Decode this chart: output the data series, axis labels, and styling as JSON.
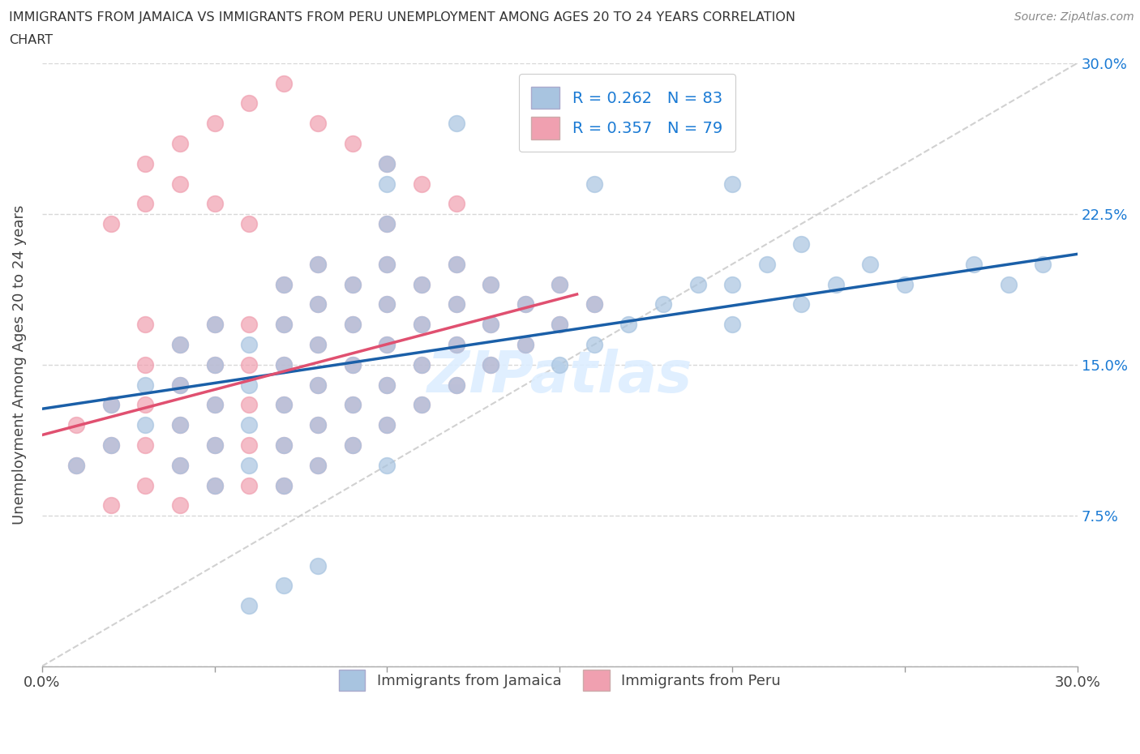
{
  "title_line1": "IMMIGRANTS FROM JAMAICA VS IMMIGRANTS FROM PERU UNEMPLOYMENT AMONG AGES 20 TO 24 YEARS CORRELATION",
  "title_line2": "CHART",
  "source": "Source: ZipAtlas.com",
  "ylabel": "Unemployment Among Ages 20 to 24 years",
  "xlim": [
    0,
    0.3
  ],
  "ylim": [
    0,
    0.3
  ],
  "xtick_positions": [
    0.0,
    0.05,
    0.1,
    0.15,
    0.2,
    0.25,
    0.3
  ],
  "xticklabels": [
    "0.0%",
    "",
    "",
    "",
    "",
    "",
    "30.0%"
  ],
  "yticks_right": [
    0.075,
    0.15,
    0.225,
    0.3
  ],
  "ytick_right_labels": [
    "7.5%",
    "15.0%",
    "22.5%",
    "30.0%"
  ],
  "jamaica_color": "#a8c4e0",
  "peru_color": "#f0a0b0",
  "jamaica_R": 0.262,
  "jamaica_N": 83,
  "peru_R": 0.357,
  "peru_N": 79,
  "jamaica_line_color": "#1a5fa8",
  "peru_line_color": "#e05070",
  "ref_line_color": "#cccccc",
  "watermark": "ZIPatlas",
  "background_color": "#ffffff",
  "grid_color": "#d8d8d8",
  "right_axis_color": "#1a7ad4",
  "legend_color": "#1a7ad4",
  "jamaica_line_x": [
    0.0,
    0.3
  ],
  "jamaica_line_y": [
    0.128,
    0.205
  ],
  "peru_line_x": [
    0.0,
    0.155
  ],
  "peru_line_y": [
    0.115,
    0.185
  ],
  "jamaica_dots": {
    "x": [
      0.01,
      0.02,
      0.02,
      0.03,
      0.03,
      0.04,
      0.04,
      0.04,
      0.04,
      0.05,
      0.05,
      0.05,
      0.05,
      0.05,
      0.06,
      0.06,
      0.06,
      0.06,
      0.07,
      0.07,
      0.07,
      0.07,
      0.07,
      0.07,
      0.08,
      0.08,
      0.08,
      0.08,
      0.08,
      0.08,
      0.09,
      0.09,
      0.09,
      0.09,
      0.09,
      0.1,
      0.1,
      0.1,
      0.1,
      0.1,
      0.1,
      0.1,
      0.1,
      0.11,
      0.11,
      0.11,
      0.11,
      0.12,
      0.12,
      0.12,
      0.12,
      0.13,
      0.13,
      0.13,
      0.14,
      0.14,
      0.15,
      0.15,
      0.15,
      0.16,
      0.16,
      0.17,
      0.18,
      0.19,
      0.2,
      0.2,
      0.21,
      0.22,
      0.23,
      0.24,
      0.25,
      0.27,
      0.28,
      0.29,
      0.15,
      0.12,
      0.1,
      0.08,
      0.07,
      0.06,
      0.16,
      0.2,
      0.22
    ],
    "y": [
      0.1,
      0.11,
      0.13,
      0.12,
      0.14,
      0.1,
      0.12,
      0.14,
      0.16,
      0.09,
      0.11,
      0.13,
      0.15,
      0.17,
      0.1,
      0.12,
      0.14,
      0.16,
      0.09,
      0.11,
      0.13,
      0.15,
      0.17,
      0.19,
      0.1,
      0.12,
      0.14,
      0.16,
      0.18,
      0.2,
      0.11,
      0.13,
      0.15,
      0.17,
      0.19,
      0.1,
      0.12,
      0.14,
      0.16,
      0.18,
      0.2,
      0.22,
      0.24,
      0.13,
      0.15,
      0.17,
      0.19,
      0.14,
      0.16,
      0.18,
      0.2,
      0.15,
      0.17,
      0.19,
      0.16,
      0.18,
      0.15,
      0.17,
      0.19,
      0.16,
      0.18,
      0.17,
      0.18,
      0.19,
      0.17,
      0.19,
      0.2,
      0.21,
      0.19,
      0.2,
      0.19,
      0.2,
      0.19,
      0.2,
      0.28,
      0.27,
      0.25,
      0.05,
      0.04,
      0.03,
      0.24,
      0.24,
      0.18
    ]
  },
  "peru_dots": {
    "x": [
      0.01,
      0.01,
      0.02,
      0.02,
      0.02,
      0.03,
      0.03,
      0.03,
      0.03,
      0.03,
      0.04,
      0.04,
      0.04,
      0.04,
      0.04,
      0.05,
      0.05,
      0.05,
      0.05,
      0.05,
      0.06,
      0.06,
      0.06,
      0.06,
      0.06,
      0.07,
      0.07,
      0.07,
      0.07,
      0.07,
      0.07,
      0.08,
      0.08,
      0.08,
      0.08,
      0.08,
      0.08,
      0.09,
      0.09,
      0.09,
      0.09,
      0.09,
      0.1,
      0.1,
      0.1,
      0.1,
      0.1,
      0.1,
      0.11,
      0.11,
      0.11,
      0.11,
      0.12,
      0.12,
      0.12,
      0.12,
      0.13,
      0.13,
      0.13,
      0.14,
      0.14,
      0.15,
      0.15,
      0.16,
      0.03,
      0.04,
      0.05,
      0.06,
      0.07,
      0.08,
      0.09,
      0.1,
      0.11,
      0.12,
      0.02,
      0.03,
      0.04,
      0.05,
      0.06
    ],
    "y": [
      0.1,
      0.12,
      0.08,
      0.11,
      0.13,
      0.09,
      0.11,
      0.13,
      0.15,
      0.17,
      0.08,
      0.1,
      0.12,
      0.14,
      0.16,
      0.09,
      0.11,
      0.13,
      0.15,
      0.17,
      0.09,
      0.11,
      0.13,
      0.15,
      0.17,
      0.09,
      0.11,
      0.13,
      0.15,
      0.17,
      0.19,
      0.1,
      0.12,
      0.14,
      0.16,
      0.18,
      0.2,
      0.11,
      0.13,
      0.15,
      0.17,
      0.19,
      0.12,
      0.14,
      0.16,
      0.18,
      0.2,
      0.22,
      0.13,
      0.15,
      0.17,
      0.19,
      0.14,
      0.16,
      0.18,
      0.2,
      0.15,
      0.17,
      0.19,
      0.16,
      0.18,
      0.17,
      0.19,
      0.18,
      0.25,
      0.26,
      0.27,
      0.28,
      0.29,
      0.27,
      0.26,
      0.25,
      0.24,
      0.23,
      0.22,
      0.23,
      0.24,
      0.23,
      0.22
    ]
  }
}
